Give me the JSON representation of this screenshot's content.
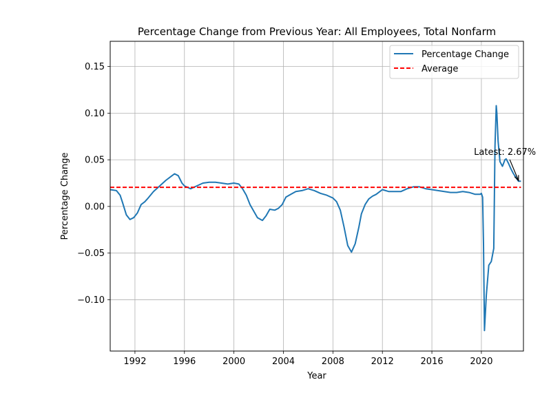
{
  "chart_data": {
    "type": "line",
    "title": "Percentage Change from Previous Year: All Employees, Total Nonfarm",
    "xlabel": "Year",
    "ylabel": "Percentage Change",
    "xlim": [
      1990.0,
      2023.4
    ],
    "ylim": [
      -0.155,
      0.177
    ],
    "xticks": [
      {
        "value": 1992,
        "label": "1992"
      },
      {
        "value": 1996,
        "label": "1996"
      },
      {
        "value": 2000,
        "label": "2000"
      },
      {
        "value": 2004,
        "label": "2004"
      },
      {
        "value": 2008,
        "label": "2008"
      },
      {
        "value": 2012,
        "label": "2012"
      },
      {
        "value": 2016,
        "label": "2016"
      },
      {
        "value": 2020,
        "label": "2020"
      }
    ],
    "yticks": [
      {
        "value": 0.15,
        "label": "0.15"
      },
      {
        "value": 0.1,
        "label": "0.10"
      },
      {
        "value": 0.05,
        "label": "0.05"
      },
      {
        "value": 0.0,
        "label": "0.00"
      },
      {
        "value": -0.05,
        "label": "−0.05"
      },
      {
        "value": -0.1,
        "label": "−0.10"
      }
    ],
    "grid": true,
    "legend_placement": "top-right",
    "series": [
      {
        "name": "Percentage Change",
        "color": "#1f77b4",
        "style": "solid",
        "x": [
          1990.0,
          1990.5,
          1990.8,
          1991.0,
          1991.3,
          1991.6,
          1991.9,
          1992.2,
          1992.5,
          1992.8,
          1993.0,
          1993.5,
          1994.0,
          1994.5,
          1995.0,
          1995.2,
          1995.5,
          1995.8,
          1996.0,
          1996.5,
          1997.0,
          1997.5,
          1998.0,
          1998.5,
          1999.0,
          1999.5,
          2000.0,
          2000.4,
          2000.7,
          2001.0,
          2001.3,
          2001.6,
          2001.9,
          2002.3,
          2002.6,
          2002.9,
          2003.3,
          2003.6,
          2003.9,
          2004.2,
          2004.6,
          2005.0,
          2005.5,
          2006.0,
          2006.5,
          2007.0,
          2007.5,
          2008.0,
          2008.3,
          2008.6,
          2008.9,
          2009.2,
          2009.5,
          2009.8,
          2010.1,
          2010.3,
          2010.6,
          2010.9,
          2011.2,
          2011.5,
          2011.8,
          2012.0,
          2012.5,
          2013.0,
          2013.5,
          2014.0,
          2014.5,
          2015.0,
          2015.5,
          2016.0,
          2016.5,
          2017.0,
          2017.5,
          2018.0,
          2018.5,
          2019.0,
          2019.5,
          2019.9,
          2020.0,
          2020.1,
          2020.17,
          2020.25,
          2020.4,
          2020.6,
          2020.8,
          2021.0,
          2021.1,
          2021.2,
          2021.25,
          2021.35,
          2021.5,
          2021.7,
          2021.9,
          2022.0,
          2022.2,
          2022.4,
          2022.6,
          2022.8,
          2023.0,
          2023.2
        ],
        "y": [
          0.018,
          0.017,
          0.012,
          0.004,
          -0.009,
          -0.014,
          -0.012,
          -0.007,
          0.002,
          0.005,
          0.008,
          0.016,
          0.022,
          0.028,
          0.033,
          0.035,
          0.033,
          0.025,
          0.022,
          0.019,
          0.022,
          0.025,
          0.026,
          0.026,
          0.025,
          0.024,
          0.025,
          0.024,
          0.019,
          0.012,
          0.002,
          -0.005,
          -0.012,
          -0.015,
          -0.01,
          -0.003,
          -0.004,
          -0.002,
          0.002,
          0.01,
          0.013,
          0.016,
          0.017,
          0.019,
          0.017,
          0.014,
          0.012,
          0.009,
          0.005,
          -0.004,
          -0.022,
          -0.042,
          -0.049,
          -0.04,
          -0.022,
          -0.008,
          0.002,
          0.008,
          0.011,
          0.013,
          0.016,
          0.018,
          0.016,
          0.016,
          0.016,
          0.019,
          0.021,
          0.021,
          0.019,
          0.018,
          0.017,
          0.016,
          0.015,
          0.015,
          0.016,
          0.015,
          0.013,
          0.013,
          0.014,
          0.01,
          -0.04,
          -0.133,
          -0.095,
          -0.063,
          -0.059,
          -0.045,
          0.065,
          0.108,
          0.1,
          0.07,
          0.048,
          0.043,
          0.05,
          0.051,
          0.046,
          0.04,
          0.035,
          0.031,
          0.027,
          0.027
        ]
      },
      {
        "name": "Average",
        "color": "#ff0000",
        "style": "dashed",
        "x": [
          1990.0,
          2023.2
        ],
        "y": [
          0.0205,
          0.0205
        ]
      }
    ],
    "annotations": [
      {
        "text": "Latest: 2.67%",
        "point_x": 2023.0,
        "point_y": 0.027,
        "text_x": 2019.4,
        "text_y": 0.059
      }
    ]
  }
}
